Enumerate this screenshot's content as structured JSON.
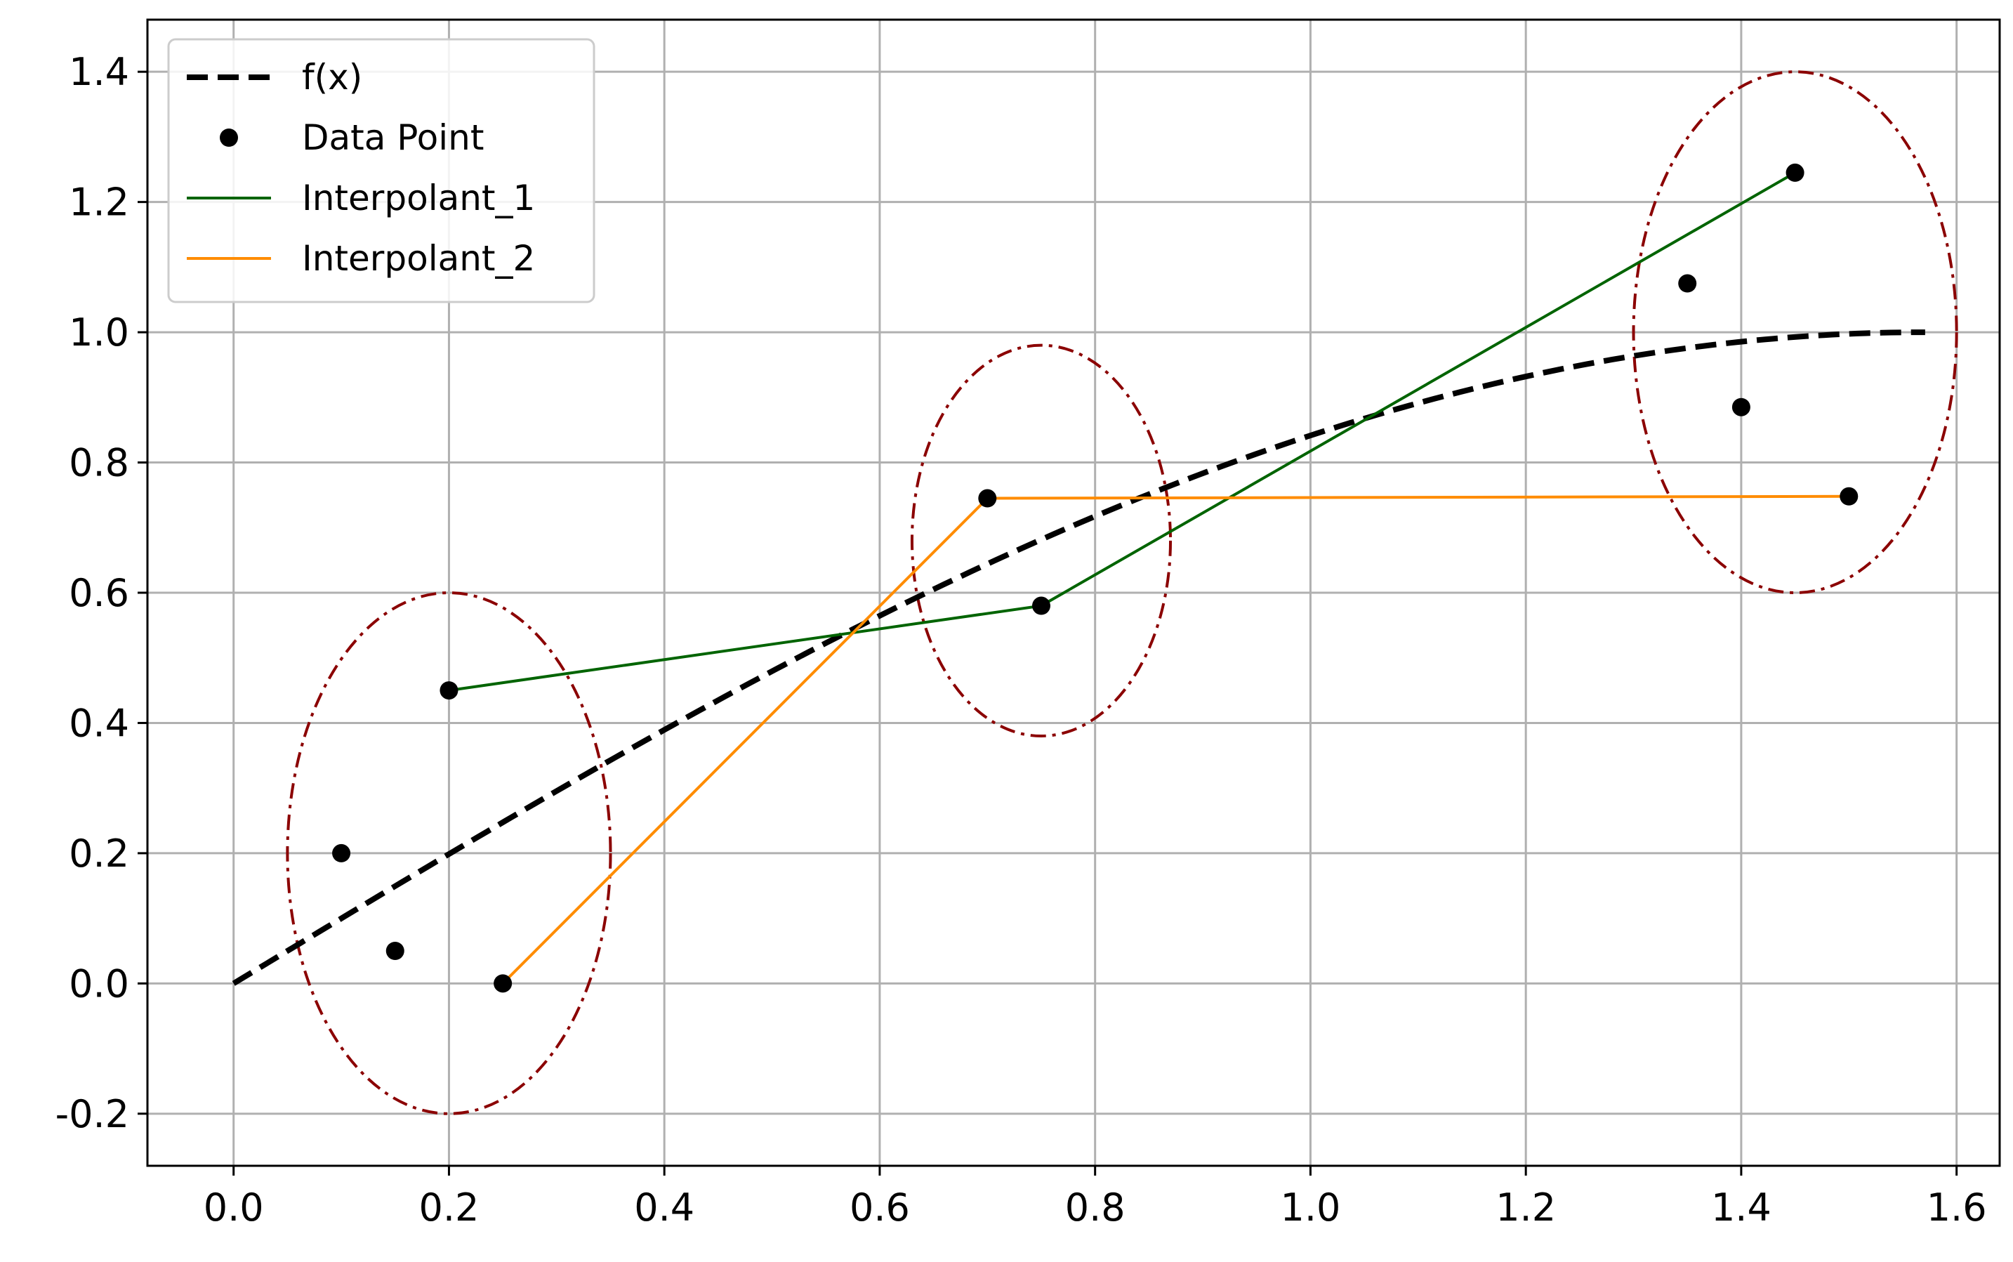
{
  "chart_data": {
    "type": "line",
    "title": "",
    "xlabel": "",
    "ylabel": "",
    "xlim": [
      -0.08,
      1.64
    ],
    "ylim": [
      -0.28,
      1.48
    ],
    "grid": true,
    "legend_placement": "top-left",
    "x_ticks": [
      0.0,
      0.2,
      0.4,
      0.6,
      0.8,
      1.0,
      1.2,
      1.4,
      1.6
    ],
    "x_tick_labels": [
      "0.0",
      "0.2",
      "0.4",
      "0.6",
      "0.8",
      "1.0",
      "1.2",
      "1.4",
      "1.6"
    ],
    "y_ticks": [
      -0.2,
      0.0,
      0.2,
      0.4,
      0.6,
      0.8,
      1.0,
      1.2,
      1.4
    ],
    "y_tick_labels": [
      "-0.2",
      "0.0",
      "0.2",
      "0.4",
      "0.6",
      "0.8",
      "1.0",
      "1.2",
      "1.4"
    ],
    "series": [
      {
        "name": "f(x)",
        "kind": "function",
        "function": "sin(x)",
        "x_range": [
          0.0,
          1.5708
        ],
        "color": "#000000",
        "style": "dashed"
      },
      {
        "name": "Data Point",
        "kind": "scatter",
        "color": "#000000",
        "points": [
          [
            0.1,
            0.2
          ],
          [
            0.15,
            0.05
          ],
          [
            0.2,
            0.45
          ],
          [
            0.25,
            0.0
          ],
          [
            0.7,
            0.745
          ],
          [
            0.75,
            0.58
          ],
          [
            1.35,
            1.075
          ],
          [
            1.4,
            0.885
          ],
          [
            1.45,
            1.245
          ],
          [
            1.5,
            0.748
          ]
        ]
      },
      {
        "name": "Interpolant_1",
        "kind": "line",
        "color": "#006400",
        "points": [
          [
            0.2,
            0.45
          ],
          [
            0.75,
            0.58
          ],
          [
            1.45,
            1.245
          ]
        ]
      },
      {
        "name": "Interpolant_2",
        "kind": "line",
        "color": "#ff8c00",
        "points": [
          [
            0.25,
            0.0
          ],
          [
            0.7,
            0.745
          ],
          [
            1.5,
            0.748
          ]
        ]
      }
    ],
    "annotations": [
      {
        "shape": "ellipse",
        "center": [
          0.2,
          0.2
        ],
        "radius_x": 0.15,
        "radius_y": 0.4,
        "color": "#8b0000",
        "style": "dashdot"
      },
      {
        "shape": "ellipse",
        "center": [
          0.75,
          0.68
        ],
        "radius_x": 0.12,
        "radius_y": 0.3,
        "color": "#8b0000",
        "style": "dashdot"
      },
      {
        "shape": "ellipse",
        "center": [
          1.45,
          1.0
        ],
        "radius_x": 0.15,
        "radius_y": 0.4,
        "color": "#8b0000",
        "style": "dashdot"
      }
    ]
  }
}
